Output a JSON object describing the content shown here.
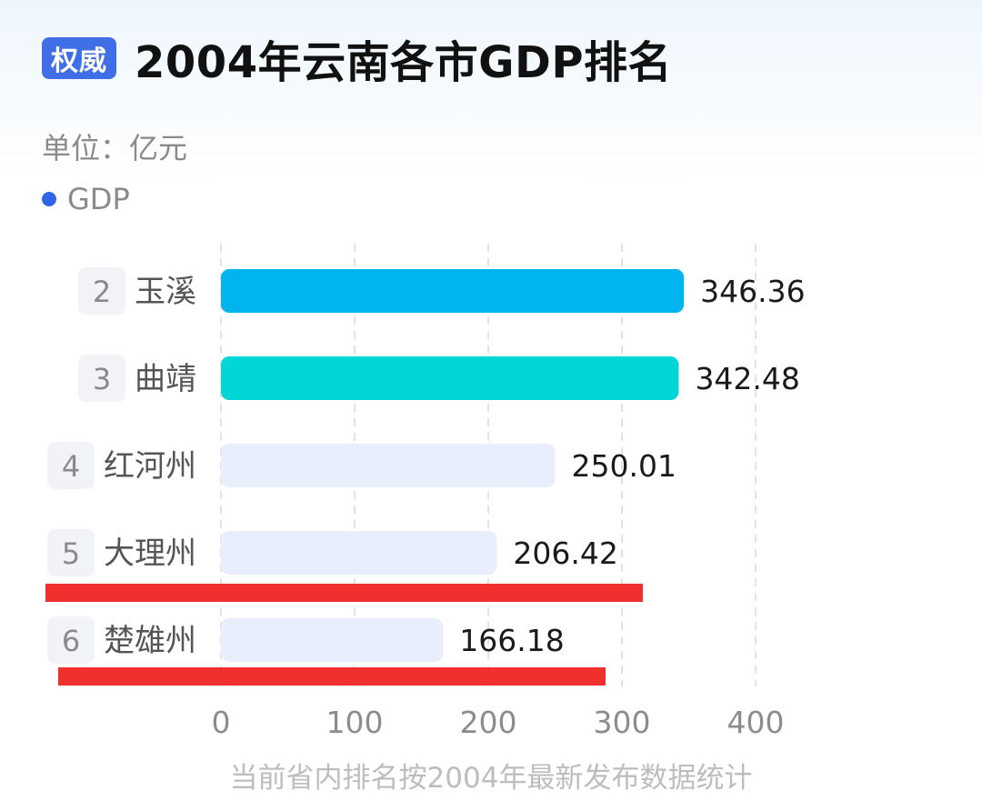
{
  "header": {
    "badge": "权威",
    "title": "2004年云南各市GDP排名"
  },
  "unit_label": "单位：亿元",
  "footnote": "当前省内排名按2004年最新发布数据统计",
  "colors": {
    "badge": "#3f6ee6",
    "legend_dot": "#2f66e8",
    "bar_top1": "#00b4ef",
    "bar_top2": "#00d6d6",
    "bar_other": "#e8eefb",
    "annotation_line": "#f0302e"
  },
  "chart_data": {
    "type": "bar",
    "orientation": "horizontal",
    "legend": "GDP",
    "categories": [
      "玉溪",
      "曲靖",
      "红河州",
      "大理州",
      "楚雄州"
    ],
    "ranks": [
      "2",
      "3",
      "4",
      "5",
      "6"
    ],
    "values": [
      346.36,
      342.48,
      250.01,
      206.42,
      166.18
    ],
    "value_labels": [
      "346.36",
      "342.48",
      "250.01",
      "206.42",
      "166.18"
    ],
    "xlim": [
      0,
      400
    ],
    "xticks": [
      "0",
      "100",
      "200",
      "300",
      "400"
    ],
    "grid": "vertical dashed",
    "annotations": [
      "red underline beneath 大理州",
      "red underline beneath 楚雄州"
    ]
  }
}
